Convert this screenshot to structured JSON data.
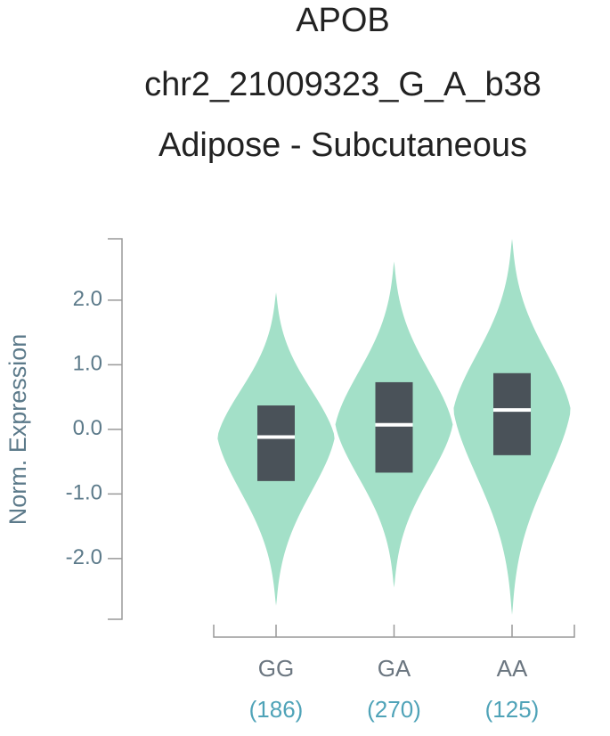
{
  "chart_data": {
    "type": "violin",
    "title": [
      "APOB",
      "chr2_21009323_G_A_b38",
      "Adipose - Subcutaneous"
    ],
    "y_label": "Norm. Expression",
    "categories": [
      "GG",
      "GA",
      "AA"
    ],
    "count_labels": [
      "(186)",
      "(270)",
      "(125)"
    ],
    "series": [
      {
        "name": "GG",
        "min": -2.73,
        "q1": -0.8,
        "median": -0.12,
        "q3": 0.37,
        "max": 2.12
      },
      {
        "name": "GA",
        "min": -2.45,
        "q1": -0.67,
        "median": 0.07,
        "q3": 0.73,
        "max": 2.6
      },
      {
        "name": "AA",
        "min": -2.87,
        "q1": -0.4,
        "median": 0.3,
        "q3": 0.87,
        "max": 2.95
      }
    ],
    "violin_color": "#a3e0c8",
    "box_color": "#4a5259",
    "median_color": "#ffffff",
    "ylim": [
      -2.94,
      2.95
    ],
    "yticks": [
      {
        "value": 2,
        "label": "2.0"
      },
      {
        "value": 1,
        "label": "1.0"
      },
      {
        "value": 0,
        "label": "0.0"
      },
      {
        "value": -1,
        "label": "-1.0"
      },
      {
        "value": -2,
        "label": "-2.0"
      }
    ]
  }
}
